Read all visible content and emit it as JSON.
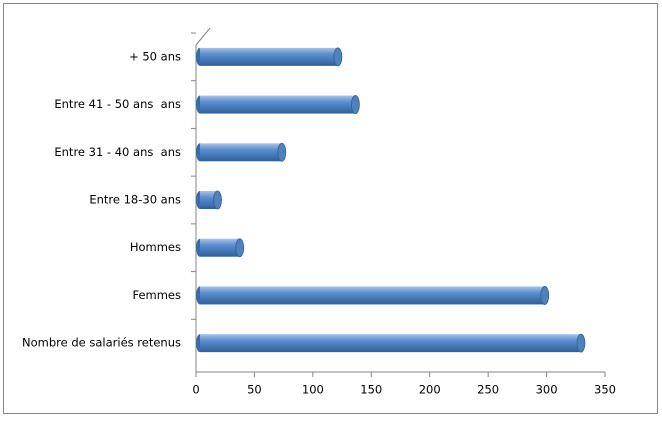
{
  "chart_data": {
    "type": "bar",
    "orientation": "horizontal",
    "categories": [
      "+ 50 ans",
      "Entre 41 - 50 ans  ans",
      "Entre 31 - 40 ans  ans",
      "Entre 18-30 ans",
      "Hommes",
      "Femmes",
      "Nombre de salariés retenus"
    ],
    "values": [
      118,
      133,
      70,
      15,
      34,
      295,
      326
    ],
    "color": "#4f81bd",
    "xlim": [
      0,
      350
    ],
    "xticks": [
      0,
      50,
      100,
      150,
      200,
      250,
      300,
      350
    ],
    "grid": false
  }
}
